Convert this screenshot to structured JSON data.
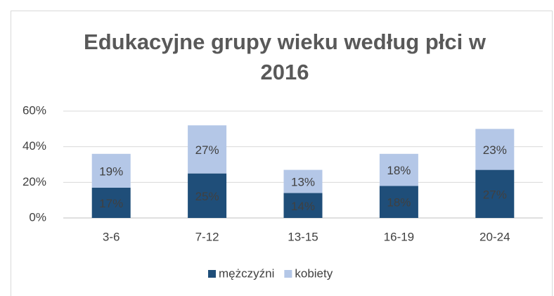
{
  "chart_data": {
    "type": "stacked_bar",
    "title": "Edukacyjne grupy wieku według płci w 2016",
    "categories": [
      "3-6",
      "7-12",
      "13-15",
      "16-19",
      "20-24"
    ],
    "series": [
      {
        "name": "mężczyźni",
        "color": "#1f4e79",
        "values": [
          17,
          25,
          14,
          18,
          27
        ],
        "value_labels": [
          "17%",
          "25%",
          "14%",
          "18%",
          "27%"
        ]
      },
      {
        "name": "kobiety",
        "color": "#b4c7e7",
        "values": [
          19,
          27,
          13,
          18,
          23
        ],
        "value_labels": [
          "19%",
          "27%",
          "13%",
          "18%",
          "23%"
        ]
      }
    ],
    "ylim": [
      0,
      60
    ],
    "yticks": [
      {
        "value": 0,
        "label": "0%"
      },
      {
        "value": 20,
        "label": "20%"
      },
      {
        "value": 40,
        "label": "40%"
      },
      {
        "value": 60,
        "label": "60%"
      }
    ],
    "grid": true,
    "legend": "bottom"
  }
}
